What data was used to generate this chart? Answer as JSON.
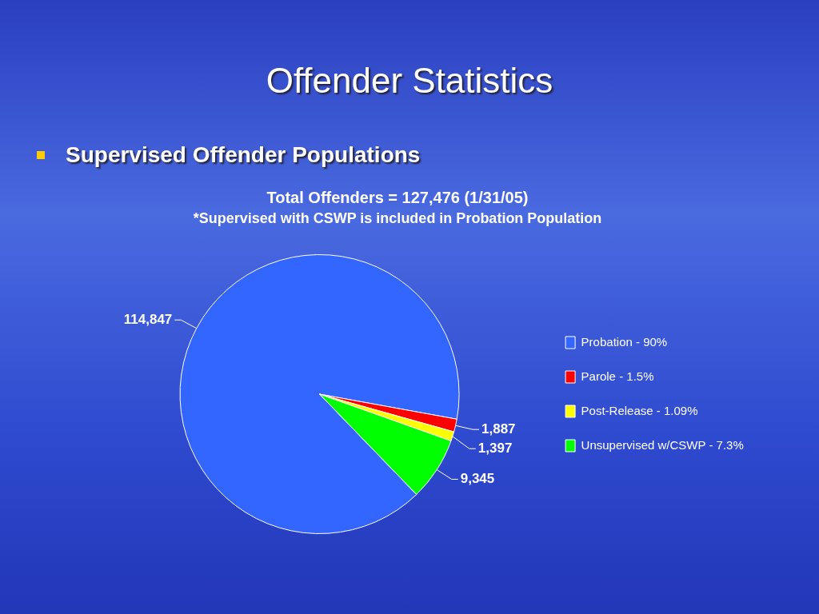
{
  "chart_data": {
    "type": "pie",
    "title": "Offender Statistics",
    "subtitle": "Supervised Offender Populations",
    "annotations": [
      "Total Offenders = 127,476 (1/31/05)",
      "*Supervised with CSWP is included in Probation Population"
    ],
    "categories": [
      "Probation - 90%",
      "Parole - 1.5%",
      "Post-Release - 1.09%",
      "Unsupervised w/CSWP - 7.3%"
    ],
    "values": [
      114847,
      1887,
      1397,
      9345
    ],
    "value_labels": [
      "114,847",
      "1,887",
      "1,397",
      "9,345"
    ],
    "colors": [
      "#3366ff",
      "#ff0000",
      "#ffff00",
      "#00ff00"
    ],
    "legend": "right"
  }
}
